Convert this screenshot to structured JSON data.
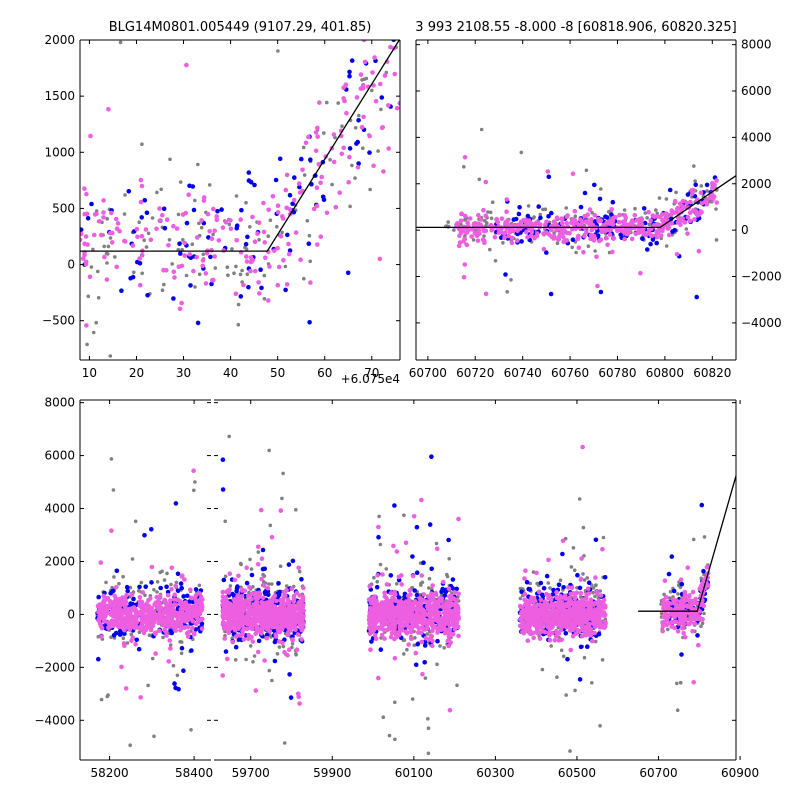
{
  "figure": {
    "top_left_title": "BLG14M0801.005449 (9107.29, 401.85)",
    "top_right_title": "3 993 2108.55 -8.000 -8 [60818.906, 60820.325]",
    "top_left_offset": "+6.075e4"
  },
  "colors": {
    "gray": "#808080",
    "blue": "#0000ee",
    "magenta": "#ee5ee0",
    "model": "#000000"
  },
  "chart_data": [
    {
      "id": "top-left",
      "type": "scatter",
      "title": "BLG14M0801.005449 (9107.29, 401.85)",
      "x_offset_label": "+6.075e4",
      "xlim": [
        8,
        76
      ],
      "ylim": [
        -850,
        2000
      ],
      "xticks": [
        10,
        20,
        30,
        40,
        50,
        60,
        70
      ],
      "yticks": [
        -500,
        0,
        500,
        1000,
        1500,
        2000
      ],
      "ytick_side": "left",
      "model": {
        "x": [
          8,
          47.8,
          76
        ],
        "y": [
          120,
          120,
          2010
        ]
      },
      "scatter_seed": 11,
      "clusters": [
        {
          "color": "gray",
          "n": 140,
          "x": [
            8,
            76
          ],
          "y_center": 200,
          "y_sd": 320,
          "tail": 0.1,
          "ramp_start": 47.8,
          "ramp_slope": 67
        },
        {
          "color": "blue",
          "n": 110,
          "x": [
            8,
            76
          ],
          "y_center": 220,
          "y_sd": 300,
          "tail": 0.1,
          "ramp_start": 47.8,
          "ramp_slope": 67
        },
        {
          "color": "magenta",
          "n": 230,
          "x": [
            8,
            76
          ],
          "y_center": 200,
          "y_sd": 260,
          "tail": 0.08,
          "ramp_start": 47.8,
          "ramp_slope": 67
        }
      ]
    },
    {
      "id": "top-right",
      "type": "scatter",
      "title": "3 993 2108.55 -8.000 -8 [60818.906, 60820.325]",
      "xlim": [
        60695,
        60830
      ],
      "ylim": [
        -5600,
        8200
      ],
      "xticks": [
        60700,
        60720,
        60740,
        60760,
        60780,
        60800,
        60820
      ],
      "yticks": [
        -4000,
        -2000,
        0,
        2000,
        4000,
        6000,
        8000
      ],
      "ytick_side": "right",
      "model": {
        "x": [
          60695,
          60798,
          60830
        ],
        "y": [
          120,
          120,
          2350
        ]
      },
      "scatter_seed": 23,
      "clusters": [
        {
          "color": "gray",
          "n": 200,
          "x": [
            60707,
            60822
          ],
          "y_center": 100,
          "y_sd": 420,
          "tail": 0.07,
          "ramp_start": 60798,
          "ramp_slope": 70
        },
        {
          "color": "blue",
          "n": 160,
          "x": [
            60726,
            60822
          ],
          "y_center": 150,
          "y_sd": 380,
          "tail": 0.06,
          "ramp_start": 60798,
          "ramp_slope": 70
        },
        {
          "color": "magenta",
          "n": 420,
          "x": [
            60712,
            60822
          ],
          "y_center": 120,
          "y_sd": 300,
          "tail": 0.05,
          "ramp_start": 60798,
          "ramp_slope": 70
        }
      ]
    },
    {
      "id": "bottom",
      "type": "scatter",
      "ylim": [
        -5500,
        8100
      ],
      "yticks": [
        -4000,
        -2000,
        0,
        2000,
        4000,
        6000,
        8000
      ],
      "ytick_side": "left",
      "segments": [
        {
          "xlim": [
            58130,
            58440
          ],
          "xticks": [
            58200,
            58400
          ],
          "scatter_seed": 31,
          "clusters": [
            {
              "color": "gray",
              "n": 170,
              "x": [
                58170,
                58420
              ],
              "y_center": 120,
              "y_sd": 620,
              "tail": 0.12
            },
            {
              "color": "blue",
              "n": 170,
              "x": [
                58170,
                58420
              ],
              "y_center": 100,
              "y_sd": 520,
              "tail": 0.08
            },
            {
              "color": "magenta",
              "n": 560,
              "x": [
                58170,
                58420
              ],
              "y_center": 0,
              "y_sd": 340,
              "tail": 0.06
            }
          ]
        },
        {
          "xlim": [
            59610,
            60890
          ],
          "xticks": [
            59700,
            59900,
            60100,
            60300,
            60500,
            60700,
            60900
          ],
          "scatter_seed": 47,
          "model": {
            "x": [
              60650,
              60795,
              60960
            ],
            "y": [
              120,
              120,
              9000
            ]
          },
          "clusters": [
            {
              "color": "gray",
              "n": 200,
              "x": [
                59630,
                59830
              ],
              "y_center": 120,
              "y_sd": 700,
              "tail": 0.12
            },
            {
              "color": "blue",
              "n": 200,
              "x": [
                59630,
                59830
              ],
              "y_center": 100,
              "y_sd": 560,
              "tail": 0.08
            },
            {
              "color": "magenta",
              "n": 620,
              "x": [
                59630,
                59830
              ],
              "y_center": 0,
              "y_sd": 380,
              "tail": 0.06
            },
            {
              "color": "gray",
              "n": 190,
              "x": [
                59990,
                60210
              ],
              "y_center": 120,
              "y_sd": 680,
              "tail": 0.12
            },
            {
              "color": "blue",
              "n": 190,
              "x": [
                59990,
                60210
              ],
              "y_center": 100,
              "y_sd": 540,
              "tail": 0.08
            },
            {
              "color": "magenta",
              "n": 620,
              "x": [
                59990,
                60210
              ],
              "y_center": 0,
              "y_sd": 380,
              "tail": 0.06
            },
            {
              "color": "gray",
              "n": 190,
              "x": [
                60360,
                60570
              ],
              "y_center": 120,
              "y_sd": 660,
              "tail": 0.12
            },
            {
              "color": "blue",
              "n": 190,
              "x": [
                60360,
                60570
              ],
              "y_center": 100,
              "y_sd": 540,
              "tail": 0.08
            },
            {
              "color": "magenta",
              "n": 600,
              "x": [
                60360,
                60570
              ],
              "y_center": -20,
              "y_sd": 370,
              "tail": 0.06
            },
            {
              "color": "gray",
              "n": 90,
              "x": [
                60705,
                60822
              ],
              "y_center": 150,
              "y_sd": 450,
              "tail": 0.1,
              "ramp_start": 60798,
              "ramp_slope": 70
            },
            {
              "color": "blue",
              "n": 80,
              "x": [
                60725,
                60822
              ],
              "y_center": 150,
              "y_sd": 400,
              "tail": 0.08,
              "ramp_start": 60798,
              "ramp_slope": 70
            },
            {
              "color": "magenta",
              "n": 180,
              "x": [
                60710,
                60822
              ],
              "y_center": 100,
              "y_sd": 320,
              "tail": 0.06,
              "ramp_start": 60798,
              "ramp_slope": 70
            }
          ]
        }
      ]
    }
  ]
}
